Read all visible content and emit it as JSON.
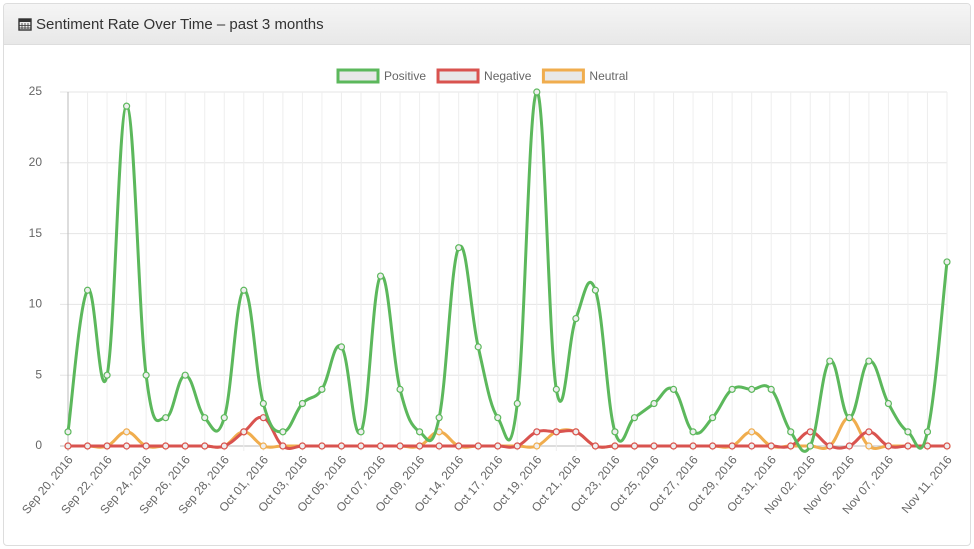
{
  "header": {
    "title": "Sentiment Rate Over Time – past 3 months"
  },
  "chart_data": {
    "type": "line",
    "categories": [
      "Sep 20, 2016",
      null,
      "Sep 22, 2016",
      null,
      "Sep 24, 2016",
      null,
      "Sep 26, 2016",
      null,
      "Sep 28, 2016",
      null,
      "Oct 01, 2016",
      null,
      "Oct 03, 2016",
      null,
      "Oct 05, 2016",
      null,
      "Oct 07, 2016",
      null,
      "Oct 09, 2016",
      null,
      "Oct 14, 2016",
      null,
      "Oct 17, 2016",
      null,
      "Oct 19, 2016",
      null,
      "Oct 21, 2016",
      null,
      "Oct 23, 2016",
      null,
      "Oct 25, 2016",
      null,
      "Oct 27, 2016",
      null,
      "Oct 29, 2016",
      null,
      "Oct 31, 2016",
      null,
      "Nov 02, 2016",
      null,
      "Nov 05, 2016",
      null,
      "Nov 07, 2016",
      null,
      null,
      "Nov 11, 2016"
    ],
    "series": [
      {
        "name": "Positive",
        "color": "#5cb85c",
        "values": [
          1,
          11,
          5,
          24,
          5,
          2,
          5,
          2,
          2,
          11,
          3,
          1,
          3,
          4,
          7,
          1,
          12,
          4,
          1,
          2,
          14,
          7,
          2,
          3,
          25,
          4,
          9,
          11,
          1,
          2,
          3,
          4,
          1,
          2,
          4,
          4,
          4,
          1,
          0,
          6,
          2,
          6,
          3,
          1,
          1,
          13
        ]
      },
      {
        "name": "Negative",
        "color": "#d9534f",
        "values": [
          0,
          0,
          0,
          0,
          0,
          0,
          0,
          0,
          0,
          1,
          2,
          0,
          0,
          0,
          0,
          0,
          0,
          0,
          0,
          0,
          0,
          0,
          0,
          0,
          1,
          1,
          1,
          0,
          0,
          0,
          0,
          0,
          0,
          0,
          0,
          0,
          0,
          0,
          1,
          0,
          0,
          1,
          0,
          0,
          0,
          0
        ]
      },
      {
        "name": "Neutral",
        "color": "#f0ad4e",
        "values": [
          0,
          0,
          0,
          1,
          0,
          0,
          0,
          0,
          0,
          1,
          0,
          0,
          0,
          0,
          0,
          0,
          0,
          0,
          0,
          1,
          0,
          0,
          0,
          0,
          0,
          1,
          1,
          0,
          0,
          0,
          0,
          0,
          0,
          0,
          0,
          1,
          0,
          0,
          0,
          0,
          2,
          0,
          0,
          0,
          0,
          0
        ]
      }
    ],
    "ylim": [
      0,
      25
    ],
    "yticks": [
      0,
      5,
      10,
      15,
      20,
      25
    ],
    "grid": true,
    "legend": "top"
  }
}
